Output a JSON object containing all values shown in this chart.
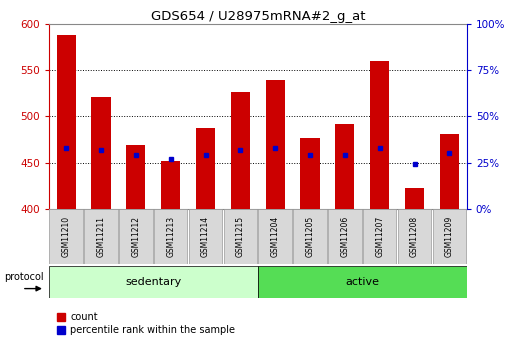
{
  "title": "GDS654 / U28975mRNA#2_g_at",
  "samples": [
    "GSM11210",
    "GSM11211",
    "GSM11212",
    "GSM11213",
    "GSM11214",
    "GSM11215",
    "GSM11204",
    "GSM11205",
    "GSM11206",
    "GSM11207",
    "GSM11208",
    "GSM11209"
  ],
  "counts": [
    588,
    521,
    469,
    452,
    487,
    527,
    539,
    477,
    492,
    560,
    422,
    481
  ],
  "percentile_ranks": [
    33,
    32,
    29,
    27,
    29,
    32,
    33,
    29,
    29,
    33,
    24,
    30
  ],
  "ylim_left": [
    400,
    600
  ],
  "ylim_right": [
    0,
    100
  ],
  "yticks_left": [
    400,
    450,
    500,
    550,
    600
  ],
  "yticks_right": [
    0,
    25,
    50,
    75,
    100
  ],
  "ytick_labels_right": [
    "0%",
    "25%",
    "50%",
    "75%",
    "100%"
  ],
  "groups": [
    {
      "label": "sedentary",
      "start": 0,
      "end": 6,
      "color": "#ccffcc"
    },
    {
      "label": "active",
      "start": 6,
      "end": 12,
      "color": "#55dd55"
    }
  ],
  "bar_color": "#cc0000",
  "percentile_color": "#0000cc",
  "bar_bottom": 400,
  "protocol_label": "protocol",
  "legend_count": "count",
  "legend_percentile": "percentile rank within the sample",
  "tick_color_left": "#cc0000",
  "tick_color_right": "#0000cc",
  "background_color": "#ffffff",
  "sample_box_color": "#d8d8d8"
}
